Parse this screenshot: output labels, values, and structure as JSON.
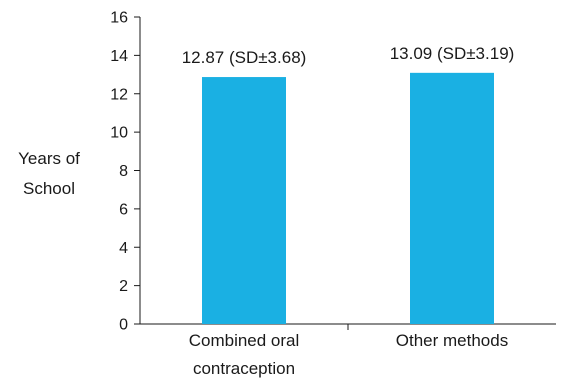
{
  "chart_data": {
    "type": "bar",
    "title": "",
    "xlabel": "",
    "ylabel_lines": [
      "Years of",
      "School"
    ],
    "ylim": [
      0,
      16
    ],
    "yticks": [
      0,
      2,
      4,
      6,
      8,
      10,
      12,
      14,
      16
    ],
    "categories": [
      [
        "Combined oral",
        "contraception"
      ],
      [
        "Other methods"
      ]
    ],
    "values": [
      12.87,
      13.09
    ],
    "data_labels": [
      "12.87 (SD±3.68)",
      "13.09 (SD±3.19)"
    ],
    "bar_color": "#1ab0e3",
    "grid": false,
    "legend": "none"
  }
}
